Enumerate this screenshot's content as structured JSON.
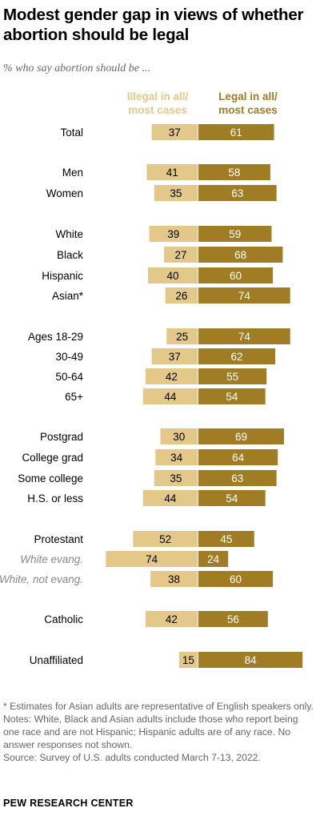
{
  "title": "Modest gender gap in views of whether abortion should be legal",
  "subtitle": "% who say abortion should be ...",
  "headers": {
    "illegal": [
      "Illegal in all/",
      "most cases"
    ],
    "legal": [
      "Legal in all/",
      "most cases"
    ]
  },
  "colors": {
    "illegal": "#e3c889",
    "legal": "#a07d24",
    "muted_label": "#888888"
  },
  "chart_data": {
    "type": "bar",
    "series": [
      {
        "name": "Illegal in all/most cases"
      },
      {
        "name": "Legal in all/most cases"
      }
    ],
    "rows": [
      {
        "label": "Total",
        "illegal": 37,
        "legal": 61
      },
      {
        "label": "Men",
        "illegal": 41,
        "legal": 58
      },
      {
        "label": "Women",
        "illegal": 35,
        "legal": 63
      },
      {
        "label": "White",
        "illegal": 39,
        "legal": 59
      },
      {
        "label": "Black",
        "illegal": 27,
        "legal": 68
      },
      {
        "label": "Hispanic",
        "illegal": 40,
        "legal": 60
      },
      {
        "label": "Asian*",
        "illegal": 26,
        "legal": 74
      },
      {
        "label": "Ages 18-29",
        "illegal": 25,
        "legal": 74
      },
      {
        "label": "30-49",
        "illegal": 37,
        "legal": 62
      },
      {
        "label": "50-64",
        "illegal": 42,
        "legal": 55
      },
      {
        "label": "65+",
        "illegal": 44,
        "legal": 54
      },
      {
        "label": "Postgrad",
        "illegal": 30,
        "legal": 69
      },
      {
        "label": "College grad",
        "illegal": 34,
        "legal": 64
      },
      {
        "label": "Some college",
        "illegal": 35,
        "legal": 63
      },
      {
        "label": "H.S. or less",
        "illegal": 44,
        "legal": 54
      },
      {
        "label": "Protestant",
        "illegal": 52,
        "legal": 45
      },
      {
        "label": "White evang.",
        "illegal": 74,
        "legal": 24,
        "subgroup": true
      },
      {
        "label": "White, not evang.",
        "illegal": 38,
        "legal": 60,
        "subgroup": true
      },
      {
        "label": "Catholic",
        "illegal": 42,
        "legal": 56
      },
      {
        "label": "Unaffiliated",
        "illegal": 15,
        "legal": 84
      }
    ]
  },
  "footnotes": [
    "* Estimates for Asian adults are representative of English speakers only.",
    "Notes: White, Black and Asian adults include those who report being one race and are not Hispanic; Hispanic adults are of any race. No answer responses not shown.",
    "Source: Survey of U.S. adults conducted March 7-13, 2022."
  ],
  "brand": "PEW RESEARCH CENTER"
}
